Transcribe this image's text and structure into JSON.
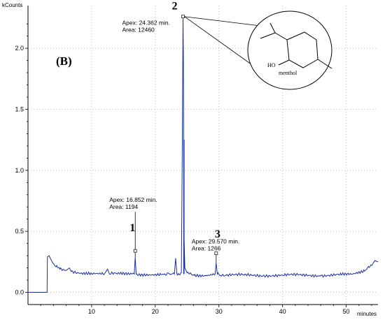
{
  "chart_data": {
    "type": "line",
    "panel_label": "(B)",
    "y_unit": "kCounts",
    "x_unit": "minutes",
    "xlim": [
      0,
      55
    ],
    "ylim": [
      -0.1,
      2.35
    ],
    "x_ticks": [
      "10",
      "20",
      "30",
      "40",
      "50"
    ],
    "y_ticks": [
      "0.0",
      "0.5",
      "1.0",
      "1.5",
      "2.0"
    ],
    "x_tick_values": [
      10,
      20,
      30,
      40,
      50
    ],
    "y_tick_values": [
      0.0,
      0.5,
      1.0,
      1.5,
      2.0
    ],
    "grid": true,
    "line_color": "#1a2fa0",
    "trace_points": [
      [
        0,
        0
      ],
      [
        3.0,
        0
      ],
      [
        3.05,
        0.29
      ],
      [
        3.3,
        0.3
      ],
      [
        3.6,
        0.27
      ],
      [
        3.9,
        0.24
      ],
      [
        4.4,
        0.21
      ],
      [
        5.0,
        0.19
      ],
      [
        6.0,
        0.18
      ],
      [
        6.5,
        0.2
      ],
      [
        6.8,
        0.17
      ],
      [
        8.0,
        0.16
      ],
      [
        10.0,
        0.155
      ],
      [
        12.0,
        0.15
      ],
      [
        12.5,
        0.19
      ],
      [
        12.8,
        0.15
      ],
      [
        14.0,
        0.15
      ],
      [
        16.0,
        0.145
      ],
      [
        16.7,
        0.15
      ],
      [
        16.85,
        0.29
      ],
      [
        17.0,
        0.15
      ],
      [
        19.0,
        0.145
      ],
      [
        21.0,
        0.145
      ],
      [
        22.0,
        0.16
      ],
      [
        22.4,
        0.145
      ],
      [
        23.0,
        0.15
      ],
      [
        23.2,
        0.28
      ],
      [
        23.4,
        0.15
      ],
      [
        24.1,
        0.16
      ],
      [
        24.25,
        1.2
      ],
      [
        24.36,
        2.24
      ],
      [
        24.42,
        1.93
      ],
      [
        24.5,
        0.5
      ],
      [
        24.65,
        0.2
      ],
      [
        25.0,
        0.16
      ],
      [
        26.0,
        0.145
      ],
      [
        28.0,
        0.14
      ],
      [
        29.4,
        0.15
      ],
      [
        29.57,
        0.24
      ],
      [
        29.75,
        0.15
      ],
      [
        31.0,
        0.14
      ],
      [
        34.0,
        0.14
      ],
      [
        37.0,
        0.14
      ],
      [
        40.0,
        0.14
      ],
      [
        43.0,
        0.14
      ],
      [
        46.0,
        0.14
      ],
      [
        49.0,
        0.145
      ],
      [
        51.0,
        0.15
      ],
      [
        53.0,
        0.18
      ],
      [
        54.0,
        0.22
      ],
      [
        54.5,
        0.26
      ],
      [
        55.0,
        0.25
      ]
    ],
    "peaks": [
      {
        "number": "1",
        "apex_x": 16.852,
        "apex_y": 0.29,
        "marker_y": 0.34,
        "label_y": 0.66,
        "apex_label": "Apex: 16.852 min.",
        "area_label": "Area: 1194"
      },
      {
        "number": "2",
        "apex_x": 24.362,
        "apex_y": 2.24,
        "marker_y": 2.26,
        "label_y": 2.26,
        "apex_label": "Apex: 24.362 min.",
        "area_label": "Area: 12460"
      },
      {
        "number": "3",
        "apex_x": 29.57,
        "apex_y": 0.24,
        "marker_y": 0.32,
        "label_y": 0.32,
        "apex_label": "Apex: 29.570 min.",
        "area_label": "Area: 1266"
      }
    ],
    "structure_label": "menthol",
    "structure_atom_label": "HO"
  }
}
